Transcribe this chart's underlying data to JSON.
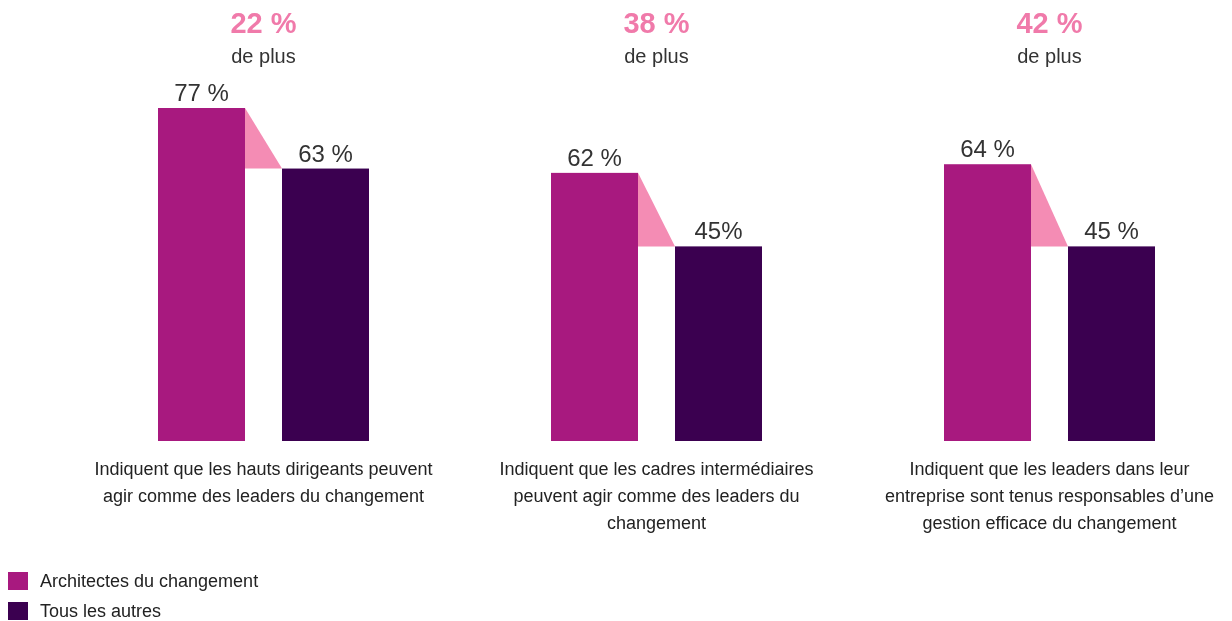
{
  "chart_data": {
    "type": "bar",
    "categories": [
      "Indiquent que les hauts dirigeants peuvent agir comme des leaders du changement",
      "Indiquent que les cadres intermédiaires peuvent agir comme des leaders du changement",
      "Indiquent que les leaders dans leur entreprise sont tenus responsables d’une gestion efficace du changement"
    ],
    "series": [
      {
        "name": "Architectes du changement",
        "color": "#a8197f",
        "values": [
          77,
          62,
          64
        ],
        "value_labels": [
          "77 %",
          "62 %",
          "64 %"
        ]
      },
      {
        "name": "Tous les autres",
        "color": "#3b0050",
        "values": [
          63,
          45,
          45
        ],
        "value_labels": [
          "63 %",
          "45%",
          "45 %"
        ]
      }
    ],
    "annotations": [
      "22 %",
      "de plus",
      "38 %",
      "de plus",
      "42 %",
      "de plus"
    ],
    "legend": "bottom left"
  }
}
